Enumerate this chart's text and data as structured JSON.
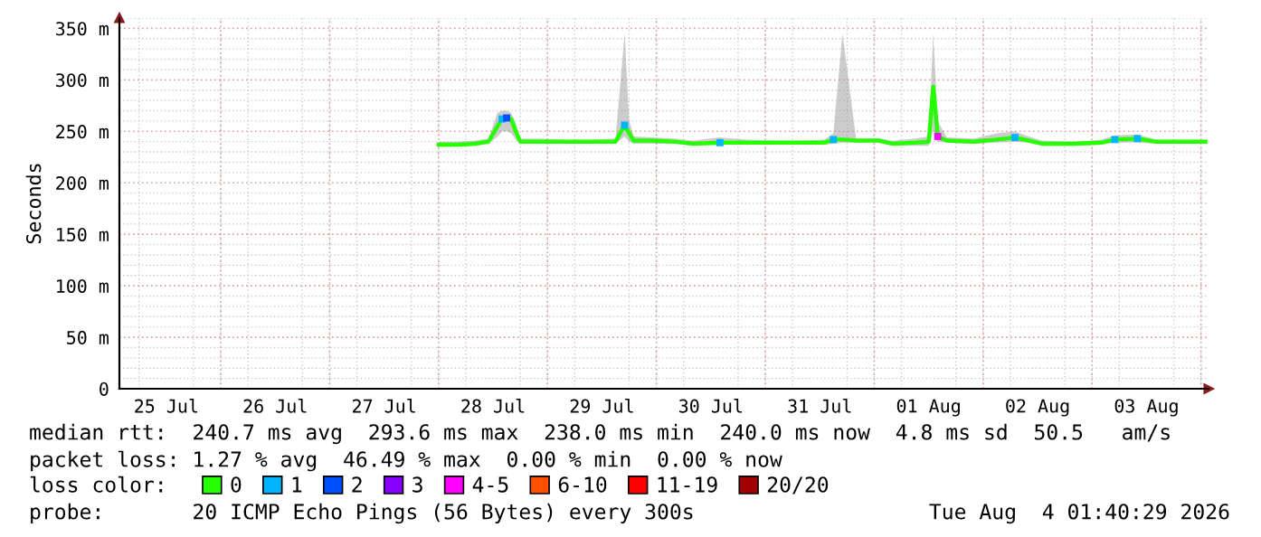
{
  "chart_data": {
    "type": "line",
    "ylabel": "Seconds",
    "xlim": [
      "2026-07-25T01:40",
      "2026-08-04T01:40"
    ],
    "xticks": [
      {
        "value": "2026-07-25T12:00",
        "label": "25 Jul"
      },
      {
        "value": "2026-07-26T12:00",
        "label": "26 Jul"
      },
      {
        "value": "2026-07-27T12:00",
        "label": "27 Jul"
      },
      {
        "value": "2026-07-28T12:00",
        "label": "28 Jul"
      },
      {
        "value": "2026-07-29T12:00",
        "label": "29 Jul"
      },
      {
        "value": "2026-07-30T12:00",
        "label": "30 Jul"
      },
      {
        "value": "2026-07-31T12:00",
        "label": "31 Jul"
      },
      {
        "value": "2026-08-01T12:00",
        "label": "01 Aug"
      },
      {
        "value": "2026-08-02T12:00",
        "label": "02 Aug"
      },
      {
        "value": "2026-08-03T12:00",
        "label": "03 Aug"
      }
    ],
    "ylim": [
      0,
      360
    ],
    "yticks": [
      0,
      {
        "value": 50,
        "label": "50 m"
      },
      {
        "value": 100,
        "label": "100 m"
      },
      {
        "value": 150,
        "label": "150 m"
      },
      {
        "value": 200,
        "label": "200 m"
      },
      {
        "value": 250,
        "label": "250 m"
      },
      {
        "value": 300,
        "label": "300 m"
      },
      {
        "value": 350,
        "label": "350 m"
      }
    ],
    "grid": true,
    "legend": "bottom",
    "legend_title": "loss color:",
    "series": [
      {
        "name": "0",
        "color": "#26ff00",
        "x": [
          "2026-07-28T00:00",
          "2026-07-28T04:00",
          "2026-07-28T08:00",
          "2026-07-28T11:00",
          "2026-07-28T13:00",
          "2026-07-28T14:00",
          "2026-07-28T15:00",
          "2026-07-28T16:00",
          "2026-07-28T17:00",
          "2026-07-28T18:00",
          "2026-07-28T22:00",
          "2026-07-29T04:00",
          "2026-07-29T10:00",
          "2026-07-29T15:00",
          "2026-07-29T17:00",
          "2026-07-29T18:00",
          "2026-07-29T19:00",
          "2026-07-29T23:00",
          "2026-07-30T04:00",
          "2026-07-30T08:00",
          "2026-07-30T14:00",
          "2026-07-30T20:00",
          "2026-07-31T02:00",
          "2026-07-31T08:00",
          "2026-07-31T13:00",
          "2026-07-31T15:00",
          "2026-07-31T17:00",
          "2026-07-31T20:00",
          "2026-08-01T01:00",
          "2026-08-01T04:00",
          "2026-08-01T09:00",
          "2026-08-01T12:00",
          "2026-08-01T13:00",
          "2026-08-01T14:00",
          "2026-08-01T16:00",
          "2026-08-01T22:00",
          "2026-08-02T03:00",
          "2026-08-02T07:00",
          "2026-08-02T10:00",
          "2026-08-02T13:00",
          "2026-08-02T20:00",
          "2026-08-03T02:00",
          "2026-08-03T05:00",
          "2026-08-03T10:00",
          "2026-08-03T14:00",
          "2026-08-03T20:00",
          "2026-08-04T01:00"
        ],
        "values": [
          237,
          237,
          238,
          240,
          255,
          262,
          263,
          262,
          250,
          240,
          240,
          240,
          240,
          240,
          256,
          248,
          241,
          241,
          240,
          238,
          239,
          239,
          239,
          239,
          239,
          242,
          242,
          241,
          241,
          238,
          239,
          240,
          293.6,
          245,
          241,
          240,
          242,
          244,
          241,
          238,
          238,
          239,
          242,
          243,
          240,
          240,
          240
        ],
        "lower": [
          235,
          235,
          236,
          238,
          245,
          250,
          250,
          248,
          242,
          238,
          238,
          238,
          238,
          238,
          245,
          240,
          238,
          238,
          238,
          236,
          237,
          237,
          237,
          237,
          237,
          238,
          239,
          239,
          239,
          236,
          236,
          236,
          250,
          240,
          239,
          238,
          239,
          240,
          239,
          236,
          236,
          237,
          239,
          239,
          238,
          238,
          238
        ],
        "upper": [
          240,
          240,
          241,
          243,
          268,
          270,
          270,
          268,
          258,
          243,
          243,
          242,
          242,
          243,
          345,
          260,
          245,
          244,
          243,
          241,
          244,
          242,
          241,
          241,
          242,
          248,
          345,
          243,
          243,
          241,
          243,
          245,
          345,
          260,
          244,
          243,
          248,
          250,
          245,
          241,
          240,
          242,
          246,
          247,
          242,
          242,
          242
        ]
      },
      {
        "name": "1",
        "type": "scatter",
        "marker": "square",
        "color": "#00b4ff",
        "x": [
          "2026-07-28T14:00",
          "2026-07-29T17:00",
          "2026-07-30T14:00",
          "2026-07-31T15:00",
          "2026-08-02T07:00",
          "2026-08-03T05:00",
          "2026-08-03T10:00"
        ],
        "values": [
          262,
          256,
          239,
          242,
          244,
          242,
          243
        ]
      },
      {
        "name": "2",
        "type": "scatter",
        "marker": "square",
        "color": "#0050ff",
        "x": [
          "2026-07-28T15:00"
        ],
        "values": [
          263
        ]
      },
      {
        "name": "3",
        "type": "scatter",
        "color": "#8a00ff"
      },
      {
        "name": "4-5",
        "type": "scatter",
        "marker": "square",
        "color": "#ff00ff",
        "x": [
          "2026-08-01T14:00"
        ],
        "values": [
          245
        ]
      },
      {
        "name": "6-10",
        "type": "scatter",
        "color": "#ff5000"
      },
      {
        "name": "11-19",
        "type": "scatter",
        "color": "#ff0000"
      },
      {
        "name": "20/20",
        "type": "scatter",
        "color": "#a10000"
      }
    ],
    "annotations": [
      "median rtt:  240.7 ms avg  293.6 ms max  238.0 ms min  240.0 ms now  4.8 ms sd  50.5   am/s",
      "packet loss: 1.27 % avg  46.49 % max  0.00 % min  0.00 % now",
      "probe:       20 ICMP Echo Pings (56 Bytes) every 300s",
      "Tue Aug  4 01:40:29 2026"
    ]
  }
}
